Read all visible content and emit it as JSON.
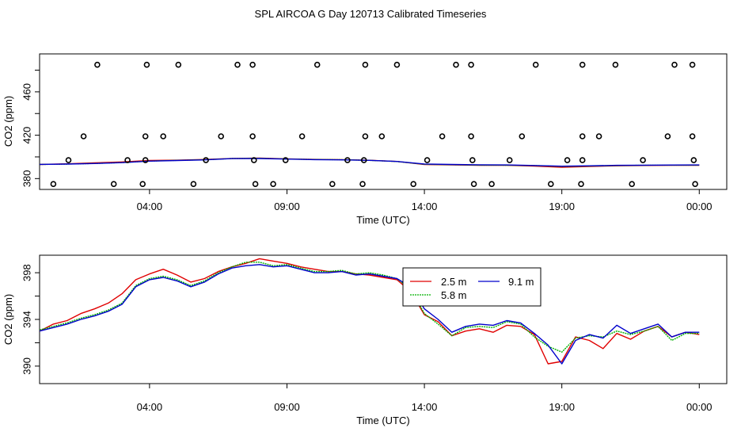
{
  "title": "SPL AIRCOA G  Day 120713  Calibrated Timeseries",
  "colors": {
    "red": "#e00000",
    "green": "#00b000",
    "blue": "#0000cc",
    "axis": "#000000"
  },
  "chart_data": [
    {
      "type": "scatter",
      "name": "top-panel",
      "xlabel": "Time (UTC)",
      "ylabel": "CO2 (ppm)",
      "xlim": [
        0,
        25
      ],
      "ylim": [
        370,
        495
      ],
      "xticks": [
        {
          "x": 4,
          "label": "04:00"
        },
        {
          "x": 9,
          "label": "09:00"
        },
        {
          "x": 14,
          "label": "14:00"
        },
        {
          "x": 19,
          "label": "19:00"
        },
        {
          "x": 24,
          "label": "00:00"
        }
      ],
      "yticks": [
        {
          "y": 380,
          "label": "380"
        },
        {
          "y": 420,
          "label": "420"
        },
        {
          "y": 460,
          "label": "460"
        }
      ],
      "circles": [
        [
          2.1,
          485
        ],
        [
          3.9,
          485
        ],
        [
          5.05,
          485
        ],
        [
          7.2,
          485
        ],
        [
          7.75,
          485
        ],
        [
          10.1,
          485
        ],
        [
          11.85,
          485
        ],
        [
          13.0,
          485
        ],
        [
          15.15,
          485
        ],
        [
          15.7,
          485
        ],
        [
          18.05,
          485
        ],
        [
          19.75,
          485
        ],
        [
          20.95,
          485
        ],
        [
          23.1,
          485
        ],
        [
          23.75,
          485
        ],
        [
          1.6,
          419
        ],
        [
          3.85,
          419
        ],
        [
          4.5,
          419
        ],
        [
          6.6,
          419
        ],
        [
          7.75,
          419
        ],
        [
          9.55,
          419
        ],
        [
          11.85,
          419
        ],
        [
          12.45,
          419
        ],
        [
          14.65,
          419
        ],
        [
          15.7,
          419
        ],
        [
          17.55,
          419
        ],
        [
          19.75,
          419
        ],
        [
          20.35,
          419
        ],
        [
          22.85,
          419
        ],
        [
          23.75,
          419
        ],
        [
          1.05,
          397
        ],
        [
          3.2,
          397
        ],
        [
          3.85,
          397
        ],
        [
          6.05,
          397
        ],
        [
          7.8,
          397
        ],
        [
          8.95,
          397
        ],
        [
          11.2,
          397
        ],
        [
          11.8,
          397
        ],
        [
          14.1,
          397
        ],
        [
          15.75,
          397
        ],
        [
          17.1,
          397
        ],
        [
          19.2,
          397
        ],
        [
          19.75,
          397
        ],
        [
          21.95,
          397
        ],
        [
          23.8,
          397
        ],
        [
          0.5,
          375
        ],
        [
          2.7,
          375
        ],
        [
          3.75,
          375
        ],
        [
          5.6,
          375
        ],
        [
          7.85,
          375
        ],
        [
          8.5,
          375
        ],
        [
          10.65,
          375
        ],
        [
          11.75,
          375
        ],
        [
          13.6,
          375
        ],
        [
          15.8,
          375
        ],
        [
          16.45,
          375
        ],
        [
          18.6,
          375
        ],
        [
          19.7,
          375
        ],
        [
          21.55,
          375
        ],
        [
          23.85,
          375
        ]
      ],
      "series": [
        {
          "name": "2.5 m",
          "color": "#e00000",
          "x": [
            0,
            1,
            2,
            3,
            4,
            5,
            6,
            7,
            8,
            9,
            10,
            11,
            12,
            13,
            14,
            15,
            16,
            17,
            18,
            19,
            20,
            21,
            22,
            23,
            24
          ],
          "values": [
            393,
            393.6,
            394.5,
            395.4,
            396.7,
            397,
            397.6,
            398.6,
            398.9,
            398.2,
            397.7,
            397.5,
            396.9,
            395.8,
            393,
            392.6,
            392.3,
            392.2,
            391.6,
            390.4,
            391.2,
            391.8,
            392.1,
            392.2,
            392.3
          ]
        },
        {
          "name": "5.8 m",
          "color": "#00b000",
          "x": [
            0,
            1,
            2,
            3,
            4,
            5,
            6,
            7,
            8,
            9,
            10,
            11,
            12,
            13,
            14,
            15,
            16,
            17,
            18,
            19,
            20,
            21,
            22,
            23,
            24
          ],
          "values": [
            393,
            393.4,
            394,
            394.8,
            396.2,
            396.8,
            397.4,
            398.5,
            398.7,
            398.1,
            397.6,
            397.4,
            396.8,
            395.7,
            393.2,
            392.8,
            392.4,
            392.3,
            392,
            391.2,
            391.6,
            392,
            392.3,
            392.4,
            392.4
          ]
        },
        {
          "name": "9.1 m",
          "color": "#0000cc",
          "x": [
            0,
            1,
            2,
            3,
            4,
            5,
            6,
            7,
            8,
            9,
            10,
            11,
            12,
            13,
            14,
            15,
            16,
            17,
            18,
            19,
            20,
            21,
            22,
            23,
            24
          ],
          "values": [
            393.1,
            393.4,
            393.9,
            394.7,
            396.1,
            396.7,
            397.3,
            398.4,
            398.5,
            398,
            397.5,
            397.3,
            396.8,
            395.8,
            393.5,
            393,
            392.7,
            392.6,
            392.1,
            391.4,
            391.8,
            392.2,
            392.4,
            392.5,
            392.6
          ]
        }
      ]
    },
    {
      "type": "line",
      "name": "bottom-panel",
      "xlabel": "Time (UTC)",
      "ylabel": "CO2 (ppm)",
      "xlim": [
        0,
        25
      ],
      "ylim": [
        388.5,
        399.5
      ],
      "xticks": [
        {
          "x": 4,
          "label": "04:00"
        },
        {
          "x": 9,
          "label": "09:00"
        },
        {
          "x": 14,
          "label": "14:00"
        },
        {
          "x": 19,
          "label": "19:00"
        },
        {
          "x": 24,
          "label": "00:00"
        }
      ],
      "yticks": [
        {
          "y": 390,
          "label": "390"
        },
        {
          "y": 394,
          "label": "394"
        },
        {
          "y": 398,
          "label": "398"
        }
      ],
      "legend": [
        "2.5 m",
        "9.1 m",
        "5.8 m"
      ],
      "series": [
        {
          "name": "2.5 m",
          "color": "#e00000",
          "x": [
            0,
            0.5,
            1,
            1.5,
            2,
            2.5,
            3,
            3.5,
            4,
            4.5,
            5,
            5.5,
            6,
            6.5,
            7,
            7.5,
            8,
            8.5,
            9,
            9.5,
            10,
            10.5,
            11,
            11.5,
            12,
            12.5,
            13,
            13.5,
            14,
            14.5,
            15,
            15.5,
            16,
            16.5,
            17,
            17.5,
            18,
            18.5,
            19,
            19.5,
            20,
            20.5,
            21,
            21.5,
            22,
            22.5,
            23,
            23.5,
            24
          ],
          "values": [
            393.0,
            393.6,
            393.9,
            394.5,
            394.9,
            395.4,
            396.2,
            397.4,
            397.9,
            398.3,
            397.8,
            397.2,
            397.5,
            398.1,
            398.5,
            398.8,
            399.2,
            399.0,
            398.8,
            398.5,
            398.3,
            398.1,
            398.1,
            397.9,
            397.8,
            397.6,
            397.4,
            396.4,
            394.4,
            393.8,
            392.6,
            393.0,
            393.2,
            392.9,
            393.5,
            393.4,
            392.7,
            390.2,
            390.4,
            392.5,
            392.2,
            391.5,
            392.8,
            392.3,
            393.0,
            393.4,
            392.5,
            392.9,
            392.7
          ]
        },
        {
          "name": "5.8 m",
          "color": "#00b000",
          "x": [
            0,
            0.5,
            1,
            1.5,
            2,
            2.5,
            3,
            3.5,
            4,
            4.5,
            5,
            5.5,
            6,
            6.5,
            7,
            7.5,
            8,
            8.5,
            9,
            9.5,
            10,
            10.5,
            11,
            11.5,
            12,
            12.5,
            13,
            13.5,
            14,
            14.5,
            15,
            15.5,
            16,
            16.5,
            17,
            17.5,
            18,
            18.5,
            19,
            19.5,
            20,
            20.5,
            21,
            21.5,
            22,
            22.5,
            23,
            23.5,
            24
          ],
          "values": [
            393.1,
            393.4,
            393.7,
            394.1,
            394.4,
            394.8,
            395.4,
            396.9,
            397.5,
            397.7,
            397.4,
            396.9,
            397.3,
            398.0,
            398.5,
            398.9,
            398.9,
            398.6,
            398.7,
            398.4,
            398.1,
            398.1,
            398.2,
            397.9,
            398.0,
            397.8,
            397.5,
            396.6,
            394.5,
            393.6,
            392.6,
            393.3,
            393.4,
            393.3,
            393.8,
            393.6,
            392.5,
            391.7,
            391.2,
            392.4,
            392.6,
            392.5,
            393.0,
            392.7,
            393.0,
            393.4,
            392.2,
            392.8,
            392.8
          ]
        },
        {
          "name": "9.1 m",
          "color": "#0000cc",
          "x": [
            0,
            0.5,
            1,
            1.5,
            2,
            2.5,
            3,
            3.5,
            4,
            4.5,
            5,
            5.5,
            6,
            6.5,
            7,
            7.5,
            8,
            8.5,
            9,
            9.5,
            10,
            10.5,
            11,
            11.5,
            12,
            12.5,
            13,
            13.5,
            14,
            14.5,
            15,
            15.5,
            16,
            16.5,
            17,
            17.5,
            18,
            18.5,
            19,
            19.5,
            20,
            20.5,
            21,
            21.5,
            22,
            22.5,
            23,
            23.5,
            24
          ],
          "values": [
            393.0,
            393.3,
            393.6,
            394.0,
            394.3,
            394.7,
            395.3,
            396.8,
            397.4,
            397.6,
            397.3,
            396.8,
            397.2,
            397.9,
            398.4,
            398.6,
            398.7,
            398.5,
            398.6,
            398.3,
            398.0,
            398.0,
            398.1,
            397.8,
            397.9,
            397.7,
            397.5,
            396.8,
            394.9,
            394.0,
            392.9,
            393.4,
            393.6,
            393.5,
            393.9,
            393.7,
            392.8,
            391.8,
            390.2,
            392.2,
            392.7,
            392.4,
            393.5,
            392.8,
            393.2,
            393.6,
            392.5,
            392.9,
            392.9
          ]
        }
      ]
    }
  ]
}
